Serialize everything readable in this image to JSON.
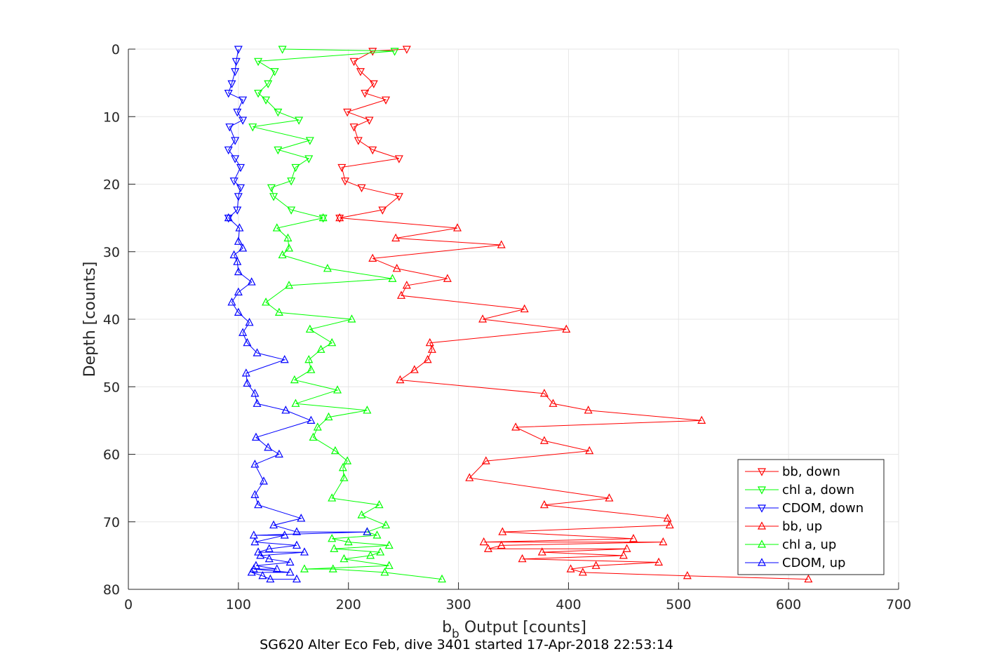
{
  "chart_data": {
    "type": "line",
    "title": "SG620 Alter Eco Feb, dive 3401 started 17-Apr-2018 22:53:14",
    "xlabel_main": "b",
    "xlabel_sub": "b",
    "xlabel_rest": " Output [counts]",
    "ylabel": "Depth [counts]",
    "xlim": [
      0,
      700
    ],
    "ylim": [
      0,
      80
    ],
    "y_reversed": true,
    "grid": true,
    "legend_position": "bottom-right",
    "x_ticks": [
      0,
      100,
      200,
      300,
      400,
      500,
      600,
      700
    ],
    "y_ticks": [
      0,
      10,
      20,
      30,
      40,
      50,
      60,
      70,
      80
    ],
    "series": [
      {
        "name": "bb, down",
        "color": "#ff0000",
        "marker": "triangle-down",
        "points": [
          [
            253,
            0
          ],
          [
            222,
            0.3
          ],
          [
            205,
            1.8
          ],
          [
            211,
            3.3
          ],
          [
            223,
            5.1
          ],
          [
            215,
            6.5
          ],
          [
            234,
            7.5
          ],
          [
            199,
            9.3
          ],
          [
            219,
            10.5
          ],
          [
            205,
            11.5
          ],
          [
            209,
            13.5
          ],
          [
            222,
            14.9
          ],
          [
            246,
            16.2
          ],
          [
            194,
            17.5
          ],
          [
            197,
            19.5
          ],
          [
            212,
            20.5
          ],
          [
            246,
            21.8
          ],
          [
            231,
            23.8
          ],
          [
            192,
            25
          ]
        ]
      },
      {
        "name": "chl a, down",
        "color": "#00ff00",
        "marker": "triangle-down",
        "points": [
          [
            140,
            0
          ],
          [
            242,
            0.3
          ],
          [
            118,
            1.8
          ],
          [
            133,
            3.3
          ],
          [
            127,
            5.1
          ],
          [
            118,
            6.5
          ],
          [
            125,
            7.5
          ],
          [
            136,
            9.3
          ],
          [
            155,
            10.5
          ],
          [
            113,
            11.5
          ],
          [
            165,
            13.5
          ],
          [
            136,
            14.9
          ],
          [
            164,
            16.2
          ],
          [
            152,
            17.5
          ],
          [
            148,
            19.5
          ],
          [
            130,
            20.5
          ],
          [
            132,
            21.8
          ],
          [
            148,
            23.8
          ],
          [
            177,
            25
          ]
        ]
      },
      {
        "name": "CDOM, down",
        "color": "#0000ff",
        "marker": "triangle-down",
        "points": [
          [
            100,
            0
          ],
          [
            98,
            1.8
          ],
          [
            97,
            3.3
          ],
          [
            94,
            5.1
          ],
          [
            91,
            6.5
          ],
          [
            104,
            7.5
          ],
          [
            99,
            9.3
          ],
          [
            104,
            10.5
          ],
          [
            92,
            11.5
          ],
          [
            97,
            13.5
          ],
          [
            91,
            14.9
          ],
          [
            97,
            16.2
          ],
          [
            102,
            17.5
          ],
          [
            96,
            19.5
          ],
          [
            102,
            20.5
          ],
          [
            100,
            21.8
          ],
          [
            99,
            23.8
          ],
          [
            91,
            25
          ]
        ]
      },
      {
        "name": "bb, up",
        "color": "#ff0000",
        "marker": "triangle-up",
        "points": [
          [
            618,
            78.5
          ],
          [
            508,
            78
          ],
          [
            413,
            77.5
          ],
          [
            402,
            77
          ],
          [
            425,
            76.5
          ],
          [
            482,
            76
          ],
          [
            358,
            75.5
          ],
          [
            450,
            75
          ],
          [
            376,
            74.5
          ],
          [
            453,
            74
          ],
          [
            327,
            74
          ],
          [
            339,
            73.5
          ],
          [
            486,
            73
          ],
          [
            323,
            73
          ],
          [
            459,
            72.5
          ],
          [
            340,
            71.5
          ],
          [
            492,
            70.5
          ],
          [
            490,
            69.5
          ],
          [
            378,
            67.5
          ],
          [
            437,
            66.5
          ],
          [
            310,
            63.5
          ],
          [
            325,
            61
          ],
          [
            419,
            59.5
          ],
          [
            378,
            58
          ],
          [
            352,
            56
          ],
          [
            521,
            55
          ],
          [
            418,
            53.5
          ],
          [
            386,
            52.5
          ],
          [
            378,
            51
          ],
          [
            247,
            49
          ],
          [
            260,
            47.5
          ],
          [
            272,
            46
          ],
          [
            276,
            44.5
          ],
          [
            274,
            43.5
          ],
          [
            398,
            41.5
          ],
          [
            322,
            40
          ],
          [
            360,
            38.5
          ],
          [
            248,
            36.5
          ],
          [
            253,
            35
          ],
          [
            290,
            34
          ],
          [
            244,
            32.5
          ],
          [
            222,
            31
          ],
          [
            339,
            29
          ],
          [
            243,
            28
          ],
          [
            299,
            26.5
          ],
          [
            192,
            25
          ]
        ]
      },
      {
        "name": "chl a, up",
        "color": "#00ff00",
        "marker": "triangle-up",
        "points": [
          [
            285,
            78.5
          ],
          [
            233,
            77.5
          ],
          [
            186,
            77
          ],
          [
            160,
            77
          ],
          [
            237,
            76.5
          ],
          [
            196,
            75.5
          ],
          [
            220,
            75
          ],
          [
            229,
            74.5
          ],
          [
            187,
            74
          ],
          [
            237,
            73.5
          ],
          [
            200,
            73
          ],
          [
            185,
            72.5
          ],
          [
            226,
            72
          ],
          [
            217,
            71.5
          ],
          [
            234,
            70.5
          ],
          [
            212,
            69
          ],
          [
            228,
            67.5
          ],
          [
            185,
            66.5
          ],
          [
            196,
            63.5
          ],
          [
            195,
            62
          ],
          [
            199,
            61
          ],
          [
            188,
            59.5
          ],
          [
            168,
            57.5
          ],
          [
            172,
            56
          ],
          [
            182,
            54.5
          ],
          [
            217,
            53.5
          ],
          [
            152,
            52.5
          ],
          [
            190,
            50.5
          ],
          [
            151,
            49
          ],
          [
            166,
            47.5
          ],
          [
            164,
            46
          ],
          [
            175,
            44.5
          ],
          [
            185,
            43.5
          ],
          [
            165,
            41.5
          ],
          [
            203,
            40
          ],
          [
            137,
            39
          ],
          [
            125,
            37.5
          ],
          [
            146,
            35
          ],
          [
            240,
            34
          ],
          [
            181,
            32.5
          ],
          [
            140,
            30.5
          ],
          [
            146,
            29.5
          ],
          [
            145,
            28
          ],
          [
            135,
            26.5
          ],
          [
            177,
            25
          ]
        ]
      },
      {
        "name": "CDOM, up",
        "color": "#0000ff",
        "marker": "triangle-up",
        "points": [
          [
            153,
            78.5
          ],
          [
            129,
            78.5
          ],
          [
            122,
            78
          ],
          [
            112,
            77.5
          ],
          [
            147,
            77.5
          ],
          [
            114,
            77
          ],
          [
            135,
            77
          ],
          [
            116,
            76.5
          ],
          [
            147,
            76
          ],
          [
            128,
            75.5
          ],
          [
            120,
            75
          ],
          [
            160,
            74.5
          ],
          [
            118,
            74.5
          ],
          [
            128,
            74
          ],
          [
            153,
            73.5
          ],
          [
            115,
            73
          ],
          [
            142,
            72
          ],
          [
            114,
            72
          ],
          [
            217,
            71.5
          ],
          [
            153,
            71.5
          ],
          [
            132,
            70.5
          ],
          [
            157,
            69.5
          ],
          [
            118,
            67.5
          ],
          [
            115,
            66
          ],
          [
            123,
            64
          ],
          [
            115,
            61.5
          ],
          [
            137,
            60
          ],
          [
            127,
            59
          ],
          [
            116,
            57.5
          ],
          [
            166,
            55
          ],
          [
            143,
            53.5
          ],
          [
            117,
            52.5
          ],
          [
            115,
            51
          ],
          [
            108,
            49.5
          ],
          [
            107,
            48
          ],
          [
            142,
            46
          ],
          [
            117,
            45
          ],
          [
            108,
            43.5
          ],
          [
            104,
            42
          ],
          [
            110,
            40.5
          ],
          [
            100,
            39
          ],
          [
            94,
            37.5
          ],
          [
            100,
            36
          ],
          [
            112,
            34.5
          ],
          [
            100,
            33
          ],
          [
            99,
            31.5
          ],
          [
            96,
            30.5
          ],
          [
            104,
            29.5
          ],
          [
            100,
            28.5
          ],
          [
            101,
            26.5
          ],
          [
            91,
            25
          ]
        ]
      }
    ]
  }
}
